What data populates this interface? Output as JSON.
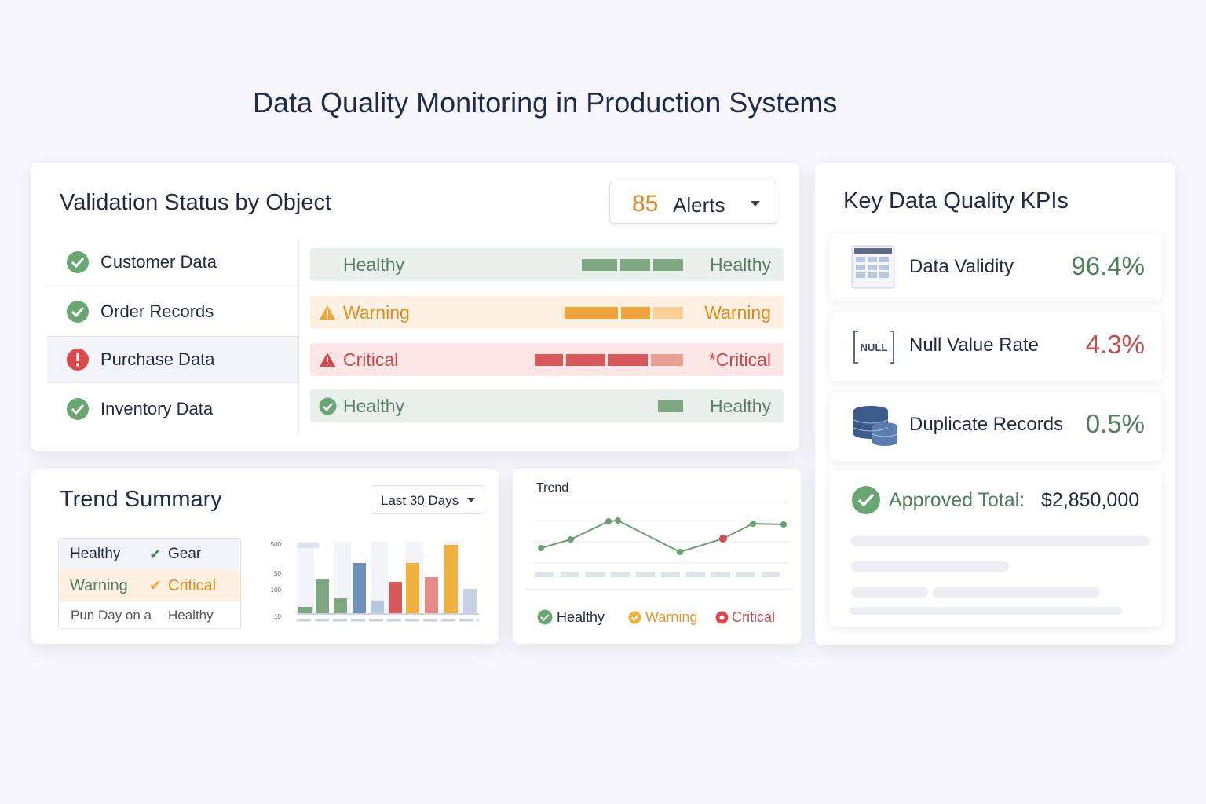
{
  "header": {
    "title": "Data Quality Monitoring in Production Systems"
  },
  "validation": {
    "title": "Validation Status by Object",
    "alerts_count": "85",
    "alerts_label": "Alerts",
    "rows": [
      {
        "object": "Customer Data",
        "status": "Healthy",
        "status_right": "Healthy"
      },
      {
        "object": "Order Records",
        "status": "Warning",
        "status_right": "Warning"
      },
      {
        "object": "Purchase Data",
        "status": "Critical",
        "status_right": "*Critical"
      },
      {
        "object": "Inventory Data",
        "status": "Healthy",
        "status_right": "Healthy"
      }
    ]
  },
  "kpis": {
    "title": "Key Data Quality KPIs",
    "null_icon": "NULL",
    "items": [
      {
        "label": "Data Validity",
        "value": "96.4%"
      },
      {
        "label": "Null Value Rate",
        "value": "4.3%"
      },
      {
        "label": "Duplicate Records",
        "value": "0.5%"
      }
    ],
    "approved_label": "Approved Total:",
    "approved_value": "$2,850,000"
  },
  "trend_summary": {
    "title": "Trend Summary",
    "range": "Last 30 Days",
    "legend_rows": [
      [
        "Healthy",
        "Gear"
      ],
      [
        "Warning",
        "Critical"
      ],
      [
        "Pun Day on a",
        "Healthy"
      ]
    ],
    "axis_labels": [
      "500",
      "50",
      "100",
      "10"
    ]
  },
  "trend": {
    "title": "Trend",
    "legend": [
      "Healthy",
      "Warning",
      "Critical"
    ]
  }
}
